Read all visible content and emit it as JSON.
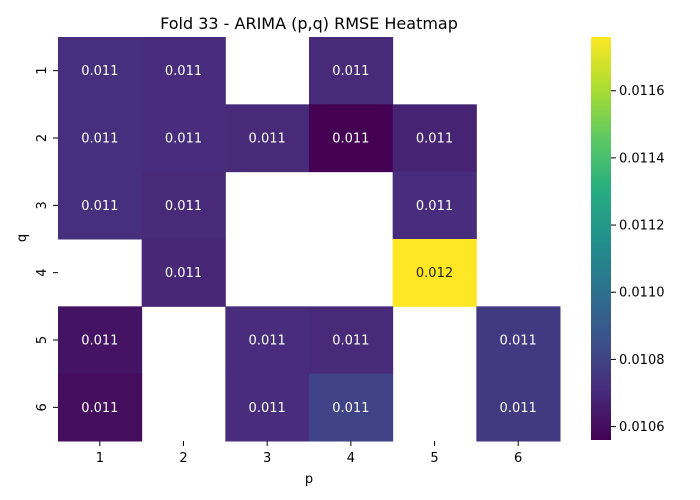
{
  "chart_data": {
    "type": "heatmap",
    "title": "Fold 33 - ARIMA (p,q) RMSE Heatmap",
    "xlabel": "p",
    "ylabel": "q",
    "x_categories": [
      "1",
      "2",
      "3",
      "4",
      "5",
      "6"
    ],
    "y_categories": [
      "1",
      "2",
      "3",
      "4",
      "5",
      "6"
    ],
    "colormap": "viridis",
    "color_range": [
      0.01056,
      0.01176
    ],
    "colorbar_ticks": [
      "0.0106",
      "0.0108",
      "0.0110",
      "0.0112",
      "0.0114",
      "0.0116"
    ],
    "colorbar_tick_values": [
      0.0106,
      0.0108,
      0.011,
      0.0112,
      0.0114,
      0.0116
    ],
    "cells": [
      {
        "p": "1",
        "q": "1",
        "value": 0.01072,
        "label": "0.011"
      },
      {
        "p": "2",
        "q": "1",
        "value": 0.01071,
        "label": "0.011"
      },
      {
        "p": "4",
        "q": "1",
        "value": 0.0107,
        "label": "0.011"
      },
      {
        "p": "1",
        "q": "2",
        "value": 0.01072,
        "label": "0.011"
      },
      {
        "p": "2",
        "q": "2",
        "value": 0.01071,
        "label": "0.011"
      },
      {
        "p": "3",
        "q": "2",
        "value": 0.0107,
        "label": "0.011"
      },
      {
        "p": "4",
        "q": "2",
        "value": 0.01056,
        "label": "0.011"
      },
      {
        "p": "5",
        "q": "2",
        "value": 0.01068,
        "label": "0.011"
      },
      {
        "p": "1",
        "q": "3",
        "value": 0.01072,
        "label": "0.011"
      },
      {
        "p": "2",
        "q": "3",
        "value": 0.0107,
        "label": "0.011"
      },
      {
        "p": "5",
        "q": "3",
        "value": 0.01071,
        "label": "0.011"
      },
      {
        "p": "2",
        "q": "4",
        "value": 0.01069,
        "label": "0.011"
      },
      {
        "p": "5",
        "q": "4",
        "value": 0.01176,
        "label": "0.012"
      },
      {
        "p": "1",
        "q": "5",
        "value": 0.01062,
        "label": "0.011"
      },
      {
        "p": "3",
        "q": "5",
        "value": 0.01071,
        "label": "0.011"
      },
      {
        "p": "4",
        "q": "5",
        "value": 0.0107,
        "label": "0.011"
      },
      {
        "p": "6",
        "q": "5",
        "value": 0.01076,
        "label": "0.011"
      },
      {
        "p": "1",
        "q": "6",
        "value": 0.0106,
        "label": "0.011"
      },
      {
        "p": "3",
        "q": "6",
        "value": 0.01071,
        "label": "0.011"
      },
      {
        "p": "4",
        "q": "6",
        "value": 0.0108,
        "label": "0.011"
      },
      {
        "p": "6",
        "q": "6",
        "value": 0.01076,
        "label": "0.011"
      }
    ]
  }
}
